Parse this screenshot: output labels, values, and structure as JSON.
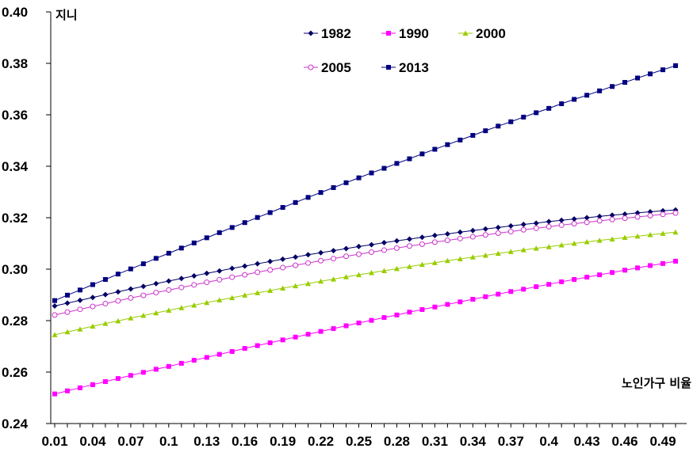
{
  "chart_data": {
    "type": "line",
    "xlabel": "노인가구 비율",
    "ylabel": "지니",
    "ylim": [
      0.24,
      0.4
    ],
    "yticks": [
      "0.24",
      "0.26",
      "0.28",
      "0.30",
      "0.32",
      "0.34",
      "0.36",
      "0.38",
      "0.40"
    ],
    "xtick_labels": [
      "0.01",
      "0.04",
      "0.07",
      "0.1",
      "0.13",
      "0.16",
      "0.19",
      "0.22",
      "0.25",
      "0.28",
      "0.31",
      "0.34",
      "0.37",
      "0.4",
      "0.43",
      "0.46",
      "0.49"
    ],
    "x_start": 0.01,
    "x_end": 0.5,
    "x_step": 0.01,
    "grid": false,
    "legend_position": "top-right",
    "series": [
      {
        "name": "1982",
        "color": "#000066",
        "marker": "diamond",
        "values": [
          0.2857,
          0.2868,
          0.2879,
          0.289,
          0.2901,
          0.2912,
          0.2923,
          0.2933,
          0.2944,
          0.2954,
          0.2964,
          0.2974,
          0.2984,
          0.2993,
          0.3003,
          0.3012,
          0.3021,
          0.303,
          0.3039,
          0.3047,
          0.3056,
          0.3064,
          0.3072,
          0.308,
          0.3088,
          0.3095,
          0.3103,
          0.311,
          0.3117,
          0.3124,
          0.3131,
          0.3137,
          0.3144,
          0.315,
          0.3156,
          0.3162,
          0.3168,
          0.3174,
          0.3179,
          0.3185,
          0.319,
          0.3195,
          0.32,
          0.3205,
          0.321,
          0.3214,
          0.3219,
          0.3223,
          0.3227,
          0.323
        ]
      },
      {
        "name": "1990",
        "color": "#ff00ff",
        "marker": "square",
        "values": [
          0.2515,
          0.2527,
          0.2539,
          0.2551,
          0.2563,
          0.2575,
          0.2587,
          0.2599,
          0.2611,
          0.2622,
          0.2634,
          0.2646,
          0.2657,
          0.2669,
          0.268,
          0.2692,
          0.2703,
          0.2714,
          0.2725,
          0.2736,
          0.2747,
          0.2758,
          0.2769,
          0.278,
          0.2791,
          0.2801,
          0.2812,
          0.2822,
          0.2833,
          0.2843,
          0.2853,
          0.2863,
          0.2873,
          0.2883,
          0.2893,
          0.2903,
          0.2913,
          0.2922,
          0.2932,
          0.2941,
          0.2951,
          0.296,
          0.2969,
          0.2978,
          0.2987,
          0.2996,
          0.3005,
          0.3014,
          0.3022,
          0.3031
        ]
      },
      {
        "name": "2000",
        "color": "#99cc00",
        "marker": "triangle",
        "values": [
          0.2745,
          0.2756,
          0.2767,
          0.2778,
          0.2789,
          0.2799,
          0.281,
          0.282,
          0.283,
          0.284,
          0.285,
          0.286,
          0.287,
          0.288,
          0.2889,
          0.2899,
          0.2908,
          0.2917,
          0.2926,
          0.2935,
          0.2944,
          0.2953,
          0.2961,
          0.297,
          0.2978,
          0.2986,
          0.2994,
          0.3002,
          0.301,
          0.3018,
          0.3025,
          0.3033,
          0.304,
          0.3047,
          0.3054,
          0.3061,
          0.3068,
          0.3075,
          0.3081,
          0.3087,
          0.3094,
          0.31,
          0.3106,
          0.3112,
          0.3117,
          0.3123,
          0.3128,
          0.3134,
          0.3139,
          0.3144
        ]
      },
      {
        "name": "2005",
        "color": "#cc33cc",
        "marker": "circle",
        "values": [
          0.2822,
          0.2833,
          0.2844,
          0.2855,
          0.2866,
          0.2877,
          0.2888,
          0.2898,
          0.2909,
          0.2919,
          0.2929,
          0.2939,
          0.2949,
          0.2959,
          0.2969,
          0.2978,
          0.2988,
          0.2997,
          0.3006,
          0.3015,
          0.3024,
          0.3033,
          0.3041,
          0.305,
          0.3058,
          0.3066,
          0.3074,
          0.3082,
          0.309,
          0.3097,
          0.3105,
          0.3112,
          0.3119,
          0.3126,
          0.3133,
          0.314,
          0.3146,
          0.3153,
          0.3159,
          0.3165,
          0.3171,
          0.3177,
          0.3182,
          0.3188,
          0.3193,
          0.3198,
          0.3203,
          0.3208,
          0.3213,
          0.3218
        ]
      },
      {
        "name": "2013",
        "color": "#000080",
        "marker": "square",
        "values": [
          0.2878,
          0.2899,
          0.2919,
          0.294,
          0.296,
          0.2981,
          0.3001,
          0.3021,
          0.3042,
          0.3062,
          0.3082,
          0.3102,
          0.3122,
          0.3142,
          0.3162,
          0.3181,
          0.3201,
          0.322,
          0.324,
          0.3259,
          0.3279,
          0.3298,
          0.3317,
          0.3336,
          0.3355,
          0.3374,
          0.3392,
          0.3411,
          0.3429,
          0.3448,
          0.3466,
          0.3484,
          0.3502,
          0.352,
          0.3538,
          0.3556,
          0.3573,
          0.3591,
          0.3608,
          0.3625,
          0.3643,
          0.366,
          0.3676,
          0.3693,
          0.371,
          0.3726,
          0.3743,
          0.3759,
          0.3775,
          0.3791
        ]
      }
    ]
  }
}
